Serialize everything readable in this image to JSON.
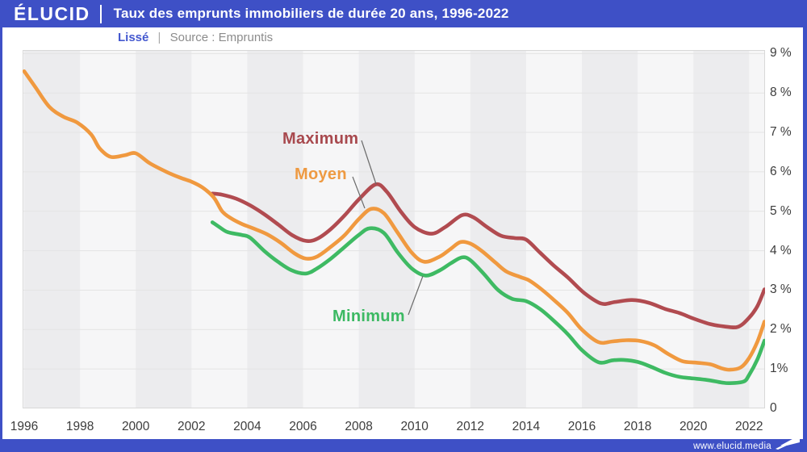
{
  "header": {
    "logo": "ÉLUCID",
    "title": "Taux des emprunts immobiliers de durée 20 ans, 1996-2022"
  },
  "subheader": {
    "smoothing": "Lissé",
    "separator": "|",
    "source": "Source : Empruntis"
  },
  "footer": {
    "url": "www.elucid.media"
  },
  "colors": {
    "frame_blue": "#3e50c6",
    "maximum": "#b14b50",
    "moyen": "#f0993f",
    "minimum": "#3eba63",
    "band_dark": "#ececee",
    "band_light": "#f6f6f7",
    "gridline": "#e4e4e4",
    "plot_border": "#d8d8d8",
    "axis_text": "#3c3c3c",
    "connector": "#6b6b6b"
  },
  "chart_data": {
    "type": "line",
    "title": "Taux des emprunts immobiliers de durée 20 ans, 1996-2022",
    "subtitle": "Lissé",
    "source": "Source : Empruntis",
    "xlabel": "",
    "ylabel": "",
    "x_axis": {
      "min": 1996,
      "max": 2022.6,
      "ticks": [
        1996,
        1998,
        2000,
        2002,
        2004,
        2006,
        2008,
        2010,
        2012,
        2014,
        2016,
        2018,
        2020,
        2022
      ]
    },
    "y_axis": {
      "min": 0,
      "max": 9.08,
      "tick_values": [
        9,
        8,
        7,
        6,
        5,
        4,
        3,
        2,
        1,
        0
      ],
      "tick_labels": [
        "9 %",
        "8 %",
        "7 %",
        "6 %",
        "5 %",
        "4 %",
        "3 %",
        "2 %",
        "1%",
        "0"
      ]
    },
    "grid": true,
    "background_bands_dark_start_years": [
      1996,
      2000,
      2004,
      2008,
      2012,
      2016,
      2020
    ],
    "legend_position": "inline-labels",
    "series": [
      {
        "name": "Maximum",
        "color": "#b14b50",
        "points": [
          [
            2002.75,
            5.45
          ],
          [
            2003.1,
            5.42
          ],
          [
            2003.6,
            5.32
          ],
          [
            2004.1,
            5.15
          ],
          [
            2004.6,
            4.93
          ],
          [
            2005.1,
            4.67
          ],
          [
            2005.6,
            4.4
          ],
          [
            2006.1,
            4.25
          ],
          [
            2006.5,
            4.3
          ],
          [
            2007.0,
            4.55
          ],
          [
            2007.5,
            4.9
          ],
          [
            2008.0,
            5.3
          ],
          [
            2008.6,
            5.68
          ],
          [
            2009.0,
            5.5
          ],
          [
            2009.5,
            5.0
          ],
          [
            2010.0,
            4.6
          ],
          [
            2010.6,
            4.43
          ],
          [
            2011.1,
            4.6
          ],
          [
            2011.7,
            4.9
          ],
          [
            2012.1,
            4.85
          ],
          [
            2012.6,
            4.6
          ],
          [
            2013.1,
            4.38
          ],
          [
            2013.6,
            4.32
          ],
          [
            2014.0,
            4.28
          ],
          [
            2014.5,
            3.95
          ],
          [
            2015.0,
            3.62
          ],
          [
            2015.5,
            3.32
          ],
          [
            2016.1,
            2.92
          ],
          [
            2016.7,
            2.66
          ],
          [
            2017.2,
            2.7
          ],
          [
            2017.8,
            2.75
          ],
          [
            2018.4,
            2.68
          ],
          [
            2019.0,
            2.52
          ],
          [
            2019.5,
            2.42
          ],
          [
            2020.0,
            2.28
          ],
          [
            2020.6,
            2.14
          ],
          [
            2021.1,
            2.08
          ],
          [
            2021.6,
            2.07
          ],
          [
            2022.0,
            2.3
          ],
          [
            2022.3,
            2.6
          ],
          [
            2022.55,
            3.02
          ]
        ]
      },
      {
        "name": "Moyen",
        "color": "#f0993f",
        "points": [
          [
            1996.0,
            8.55
          ],
          [
            1996.4,
            8.15
          ],
          [
            1996.9,
            7.65
          ],
          [
            1997.4,
            7.4
          ],
          [
            1997.9,
            7.25
          ],
          [
            1998.4,
            6.95
          ],
          [
            1998.7,
            6.6
          ],
          [
            1999.1,
            6.38
          ],
          [
            1999.6,
            6.42
          ],
          [
            2000.0,
            6.47
          ],
          [
            2000.5,
            6.22
          ],
          [
            2001.1,
            6.0
          ],
          [
            2001.6,
            5.85
          ],
          [
            2002.0,
            5.75
          ],
          [
            2002.4,
            5.6
          ],
          [
            2002.8,
            5.35
          ],
          [
            2003.1,
            5.0
          ],
          [
            2003.4,
            4.83
          ],
          [
            2003.8,
            4.68
          ],
          [
            2004.2,
            4.57
          ],
          [
            2004.7,
            4.42
          ],
          [
            2005.2,
            4.2
          ],
          [
            2005.7,
            3.93
          ],
          [
            2006.1,
            3.8
          ],
          [
            2006.5,
            3.85
          ],
          [
            2007.0,
            4.1
          ],
          [
            2007.5,
            4.4
          ],
          [
            2008.0,
            4.8
          ],
          [
            2008.45,
            5.06
          ],
          [
            2008.9,
            4.95
          ],
          [
            2009.4,
            4.45
          ],
          [
            2009.9,
            3.95
          ],
          [
            2010.35,
            3.72
          ],
          [
            2010.9,
            3.85
          ],
          [
            2011.3,
            4.05
          ],
          [
            2011.65,
            4.22
          ],
          [
            2012.0,
            4.18
          ],
          [
            2012.4,
            4.0
          ],
          [
            2012.9,
            3.7
          ],
          [
            2013.3,
            3.47
          ],
          [
            2013.8,
            3.33
          ],
          [
            2014.1,
            3.25
          ],
          [
            2014.5,
            3.05
          ],
          [
            2015.0,
            2.75
          ],
          [
            2015.5,
            2.42
          ],
          [
            2016.0,
            2.0
          ],
          [
            2016.6,
            1.68
          ],
          [
            2017.1,
            1.7
          ],
          [
            2017.6,
            1.73
          ],
          [
            2018.1,
            1.71
          ],
          [
            2018.6,
            1.6
          ],
          [
            2019.1,
            1.38
          ],
          [
            2019.6,
            1.2
          ],
          [
            2020.1,
            1.16
          ],
          [
            2020.6,
            1.12
          ],
          [
            2021.0,
            1.02
          ],
          [
            2021.3,
            0.98
          ],
          [
            2021.7,
            1.04
          ],
          [
            2022.0,
            1.28
          ],
          [
            2022.3,
            1.7
          ],
          [
            2022.55,
            2.2
          ]
        ]
      },
      {
        "name": "Minimum",
        "color": "#3eba63",
        "points": [
          [
            2002.75,
            4.72
          ],
          [
            2003.0,
            4.6
          ],
          [
            2003.3,
            4.47
          ],
          [
            2003.8,
            4.4
          ],
          [
            2004.1,
            4.33
          ],
          [
            2004.6,
            4.0
          ],
          [
            2005.1,
            3.72
          ],
          [
            2005.6,
            3.5
          ],
          [
            2006.1,
            3.42
          ],
          [
            2006.5,
            3.55
          ],
          [
            2007.0,
            3.8
          ],
          [
            2007.5,
            4.1
          ],
          [
            2008.0,
            4.4
          ],
          [
            2008.4,
            4.57
          ],
          [
            2008.9,
            4.45
          ],
          [
            2009.4,
            3.95
          ],
          [
            2009.9,
            3.55
          ],
          [
            2010.4,
            3.37
          ],
          [
            2010.9,
            3.5
          ],
          [
            2011.3,
            3.68
          ],
          [
            2011.7,
            3.83
          ],
          [
            2012.0,
            3.76
          ],
          [
            2012.5,
            3.4
          ],
          [
            2013.0,
            3.0
          ],
          [
            2013.5,
            2.78
          ],
          [
            2014.0,
            2.72
          ],
          [
            2014.5,
            2.52
          ],
          [
            2015.0,
            2.22
          ],
          [
            2015.5,
            1.88
          ],
          [
            2016.0,
            1.48
          ],
          [
            2016.6,
            1.17
          ],
          [
            2017.1,
            1.22
          ],
          [
            2017.5,
            1.23
          ],
          [
            2018.0,
            1.18
          ],
          [
            2018.5,
            1.05
          ],
          [
            2019.0,
            0.9
          ],
          [
            2019.5,
            0.8
          ],
          [
            2020.0,
            0.76
          ],
          [
            2020.5,
            0.72
          ],
          [
            2021.0,
            0.66
          ],
          [
            2021.3,
            0.64
          ],
          [
            2021.8,
            0.68
          ],
          [
            2022.0,
            0.85
          ],
          [
            2022.3,
            1.25
          ],
          [
            2022.55,
            1.72
          ]
        ]
      }
    ]
  }
}
